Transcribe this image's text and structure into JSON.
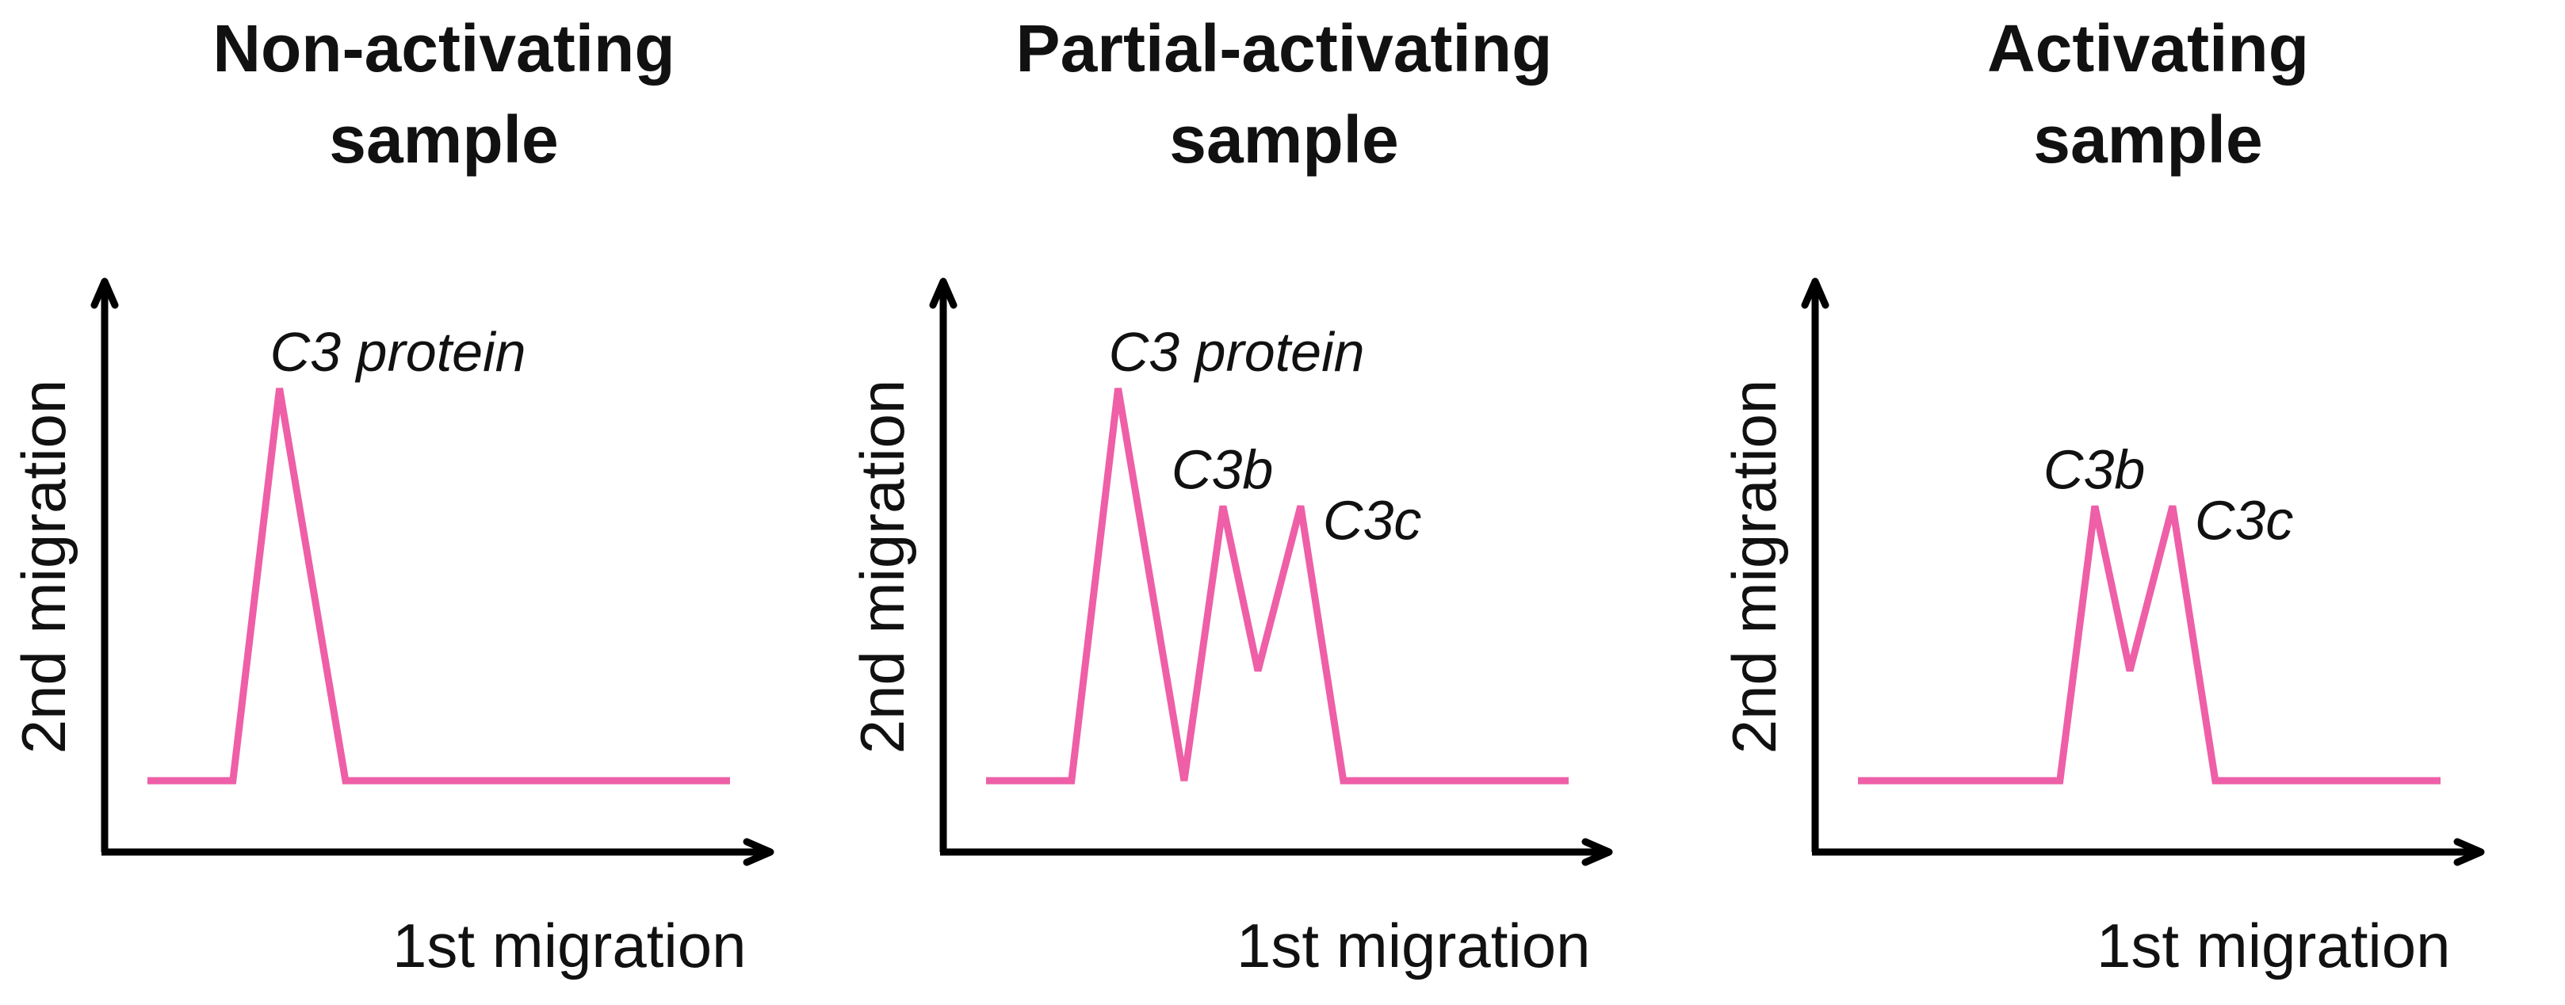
{
  "colors": {
    "trace": "#ee5fa7",
    "axis": "#000000",
    "text": "#111111"
  },
  "panels": [
    {
      "title_line1": "Non-activating",
      "title_line2": "sample",
      "y_axis_label": "2nd migration",
      "x_axis_label": "1st migration",
      "peak_labels": [
        {
          "text": "C3 protein",
          "peak_index": 0
        }
      ],
      "trace": {
        "x": [
          0,
          1.1,
          1.7,
          2.55,
          7.5
        ],
        "y": [
          0,
          0,
          1.0,
          0,
          0
        ]
      }
    },
    {
      "title_line1": "Partial-activating",
      "title_line2": "sample",
      "y_axis_label": "2nd migration",
      "x_axis_label": "1st migration",
      "peak_labels": [
        {
          "text": "C3 protein",
          "peak_index": 0
        },
        {
          "text": "C3b",
          "peak_index": 1
        },
        {
          "text": "C3c",
          "peak_index": 2
        }
      ],
      "trace": {
        "x": [
          0,
          1.1,
          1.7,
          2.55,
          3.05,
          3.5,
          4.05,
          4.6,
          7.5
        ],
        "y": [
          0,
          0,
          1.0,
          0,
          0.7,
          0.28,
          0.7,
          0,
          0
        ]
      }
    },
    {
      "title_line1": "Activating",
      "title_line2": "sample",
      "y_axis_label": "2nd migration",
      "x_axis_label": "1st migration",
      "peak_labels": [
        {
          "text": "C3b",
          "peak_index": 0
        },
        {
          "text": "C3c",
          "peak_index": 1
        }
      ],
      "trace": {
        "x": [
          0,
          2.6,
          3.05,
          3.5,
          4.05,
          4.6,
          7.5
        ],
        "y": [
          0,
          0,
          0.7,
          0.28,
          0.7,
          0,
          0
        ]
      }
    }
  ]
}
